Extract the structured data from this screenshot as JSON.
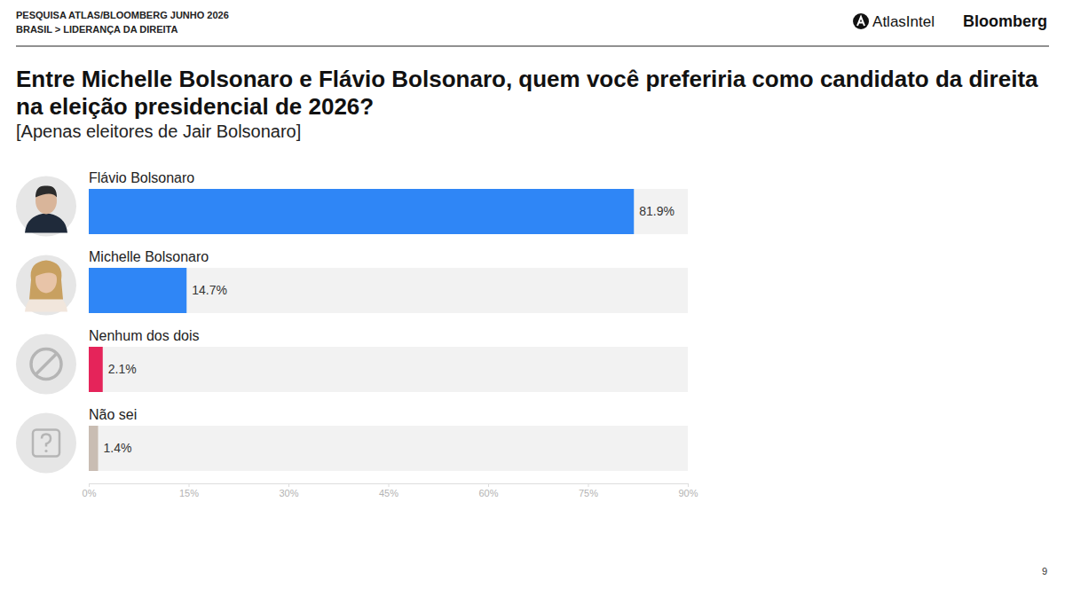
{
  "chart_data": {
    "type": "bar",
    "orientation": "horizontal",
    "title": "Entre Michelle Bolsonaro e Flávio Bolsonaro, quem você preferiria como candidato da direita na eleição presidencial de 2026?",
    "subtitle": "[Apenas eleitores de Jair Bolsonaro]",
    "annotations": [
      "PESQUISA ATLAS/BLOOMBERG JUNHO 2026",
      "BRASIL > LIDERANÇA DA DIREITA",
      "AtlasIntel",
      "Bloomberg",
      "9"
    ],
    "categories": [
      "Flávio Bolsonaro",
      "Michelle Bolsonaro",
      "Nenhum dos dois",
      "Não sei"
    ],
    "values": [
      81.9,
      14.7,
      2.1,
      1.4
    ],
    "value_labels": [
      "81.9%",
      "14.7%",
      "2.1%",
      "1.4%"
    ],
    "colors": [
      "#2f86f6",
      "#2f86f6",
      "#e5245a",
      "#c9bdb3"
    ],
    "xlim": [
      0,
      90
    ],
    "xticks": [
      {
        "value": 0,
        "label": "0%"
      },
      {
        "value": 15,
        "label": "15%"
      },
      {
        "value": 30,
        "label": "30%"
      },
      {
        "value": 45,
        "label": "45%"
      },
      {
        "value": 60,
        "label": "60%"
      },
      {
        "value": 75,
        "label": "75%"
      },
      {
        "value": 90,
        "label": "90%"
      }
    ],
    "data_labels": true,
    "grid": false
  }
}
